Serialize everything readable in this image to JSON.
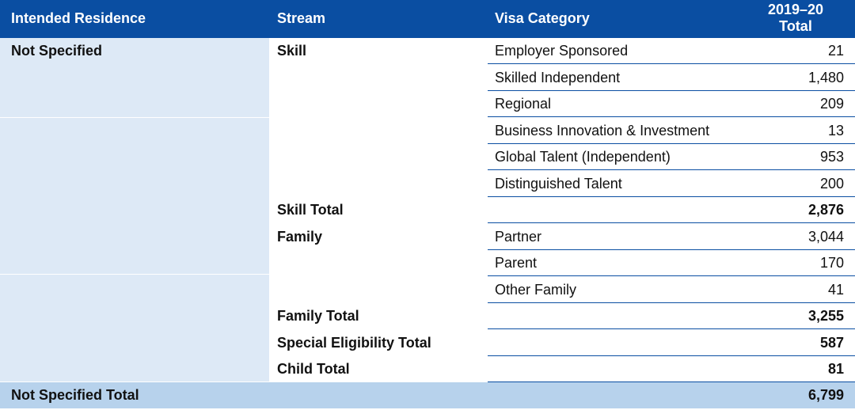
{
  "headers": {
    "residence": "Intended Residence",
    "stream": "Stream",
    "category": "Visa Category",
    "total_line1": "2019–20",
    "total_line2": "Total"
  },
  "residence": "Not Specified",
  "rows": [
    {
      "stream": "Skill",
      "category": "Employer Sponsored",
      "value": "21"
    },
    {
      "stream": "",
      "category": "Skilled Independent",
      "value": "1,480"
    },
    {
      "stream": "",
      "category": "Regional",
      "value": "209"
    },
    {
      "stream": "",
      "category": "Business Innovation & Investment",
      "value": "13"
    },
    {
      "stream": "",
      "category": "Global Talent (Independent)",
      "value": "953"
    },
    {
      "stream": "",
      "category": "Distinguished Talent",
      "value": "200"
    },
    {
      "stream": "Skill Total",
      "category": "",
      "value": "2,876"
    },
    {
      "stream": "Family",
      "category": "Partner",
      "value": "3,044"
    },
    {
      "stream": "",
      "category": "Parent",
      "value": "170"
    },
    {
      "stream": "",
      "category": "Other Family",
      "value": "41"
    },
    {
      "stream": "Family Total",
      "category": "",
      "value": "3,255"
    },
    {
      "stream": "Special Eligibility Total",
      "category": "",
      "value": "587"
    },
    {
      "stream": "Child Total",
      "category": "",
      "value": "81"
    }
  ],
  "grand_total": {
    "label": "Not Specified Total",
    "value": "6,799"
  },
  "colors": {
    "header_bg": "#0a4ea2",
    "residence_col_bg": "#dde9f6",
    "total_row_bg": "#b7d2ec",
    "row_line": "#0a4ea2"
  }
}
